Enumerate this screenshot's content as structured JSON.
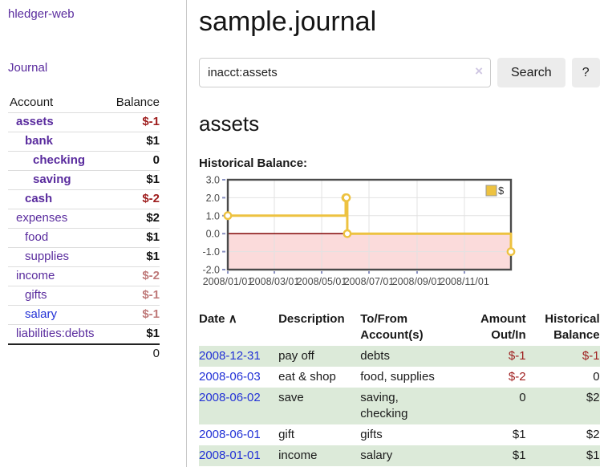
{
  "app": {
    "brand": "hledger-web"
  },
  "sidebar": {
    "nav_journal": "Journal",
    "table": {
      "col_account": "Account",
      "col_balance": "Balance",
      "accounts": [
        {
          "name": "assets",
          "balance": "$-1"
        },
        {
          "name": "bank",
          "balance": "$1"
        },
        {
          "name": "checking",
          "balance": "0"
        },
        {
          "name": "saving",
          "balance": "$1"
        },
        {
          "name": "cash",
          "balance": "$-2"
        },
        {
          "name": "expenses",
          "balance": "$2"
        },
        {
          "name": "food",
          "balance": "$1"
        },
        {
          "name": "supplies",
          "balance": "$1"
        },
        {
          "name": "income",
          "balance": "$-2"
        },
        {
          "name": "gifts",
          "balance": "$-1"
        },
        {
          "name": "salary",
          "balance": "$-1"
        },
        {
          "name": "liabilities:debts",
          "balance": "$1"
        }
      ],
      "total": "0"
    }
  },
  "header": {
    "title": "sample.journal"
  },
  "search": {
    "query": "inacct:assets",
    "clear_icon": "×",
    "search_label": "Search",
    "help_label": "?"
  },
  "account_page": {
    "heading": "assets"
  },
  "chart_data": {
    "type": "line",
    "step": true,
    "title": "Historical Balance:",
    "x_range": [
      "2008-01-01",
      "2008-12-31"
    ],
    "ylim": [
      -2,
      3
    ],
    "y_ticks": [
      "3.0",
      "2.0",
      "1.0",
      "0.0",
      "-1.0",
      "-2.0"
    ],
    "x_ticks": [
      {
        "date": "2008-01-01",
        "label": "2008/01/01"
      },
      {
        "date": "2008-03-01",
        "label": "2008/03/01"
      },
      {
        "date": "2008-05-01",
        "label": "2008/05/01"
      },
      {
        "date": "2008-07-01",
        "label": "2008/07/01"
      },
      {
        "date": "2008-09-01",
        "label": "2008/09/01"
      },
      {
        "date": "2008-11-01",
        "label": "2008/11/01"
      }
    ],
    "series": [
      {
        "name": "$",
        "color": "#edc240",
        "points": [
          {
            "x": "2008-01-01",
            "y": 1
          },
          {
            "x": "2008-06-01",
            "y": 2
          },
          {
            "x": "2008-06-02",
            "y": 2
          },
          {
            "x": "2008-06-03",
            "y": 0
          },
          {
            "x": "2008-12-31",
            "y": -1
          }
        ]
      }
    ],
    "legend": [
      {
        "label": "$",
        "color": "#edc240"
      }
    ],
    "legend_position": "top-right",
    "grid": true,
    "zero_line_color": "#8b1515",
    "negative_region_fill": "#fbdbdb"
  },
  "register": {
    "sort_icon": "∧",
    "columns": {
      "date": "Date",
      "description": "Description",
      "accounts": "To/From Account(s)",
      "amount": "Amount Out/In",
      "balance": "Historical Balance"
    },
    "rows": [
      {
        "date": "2008-12-31",
        "description": "pay off",
        "accounts": "debts",
        "amount": "$-1",
        "balance": "$-1"
      },
      {
        "date": "2008-06-03",
        "description": "eat & shop",
        "accounts": "food, supplies",
        "amount": "$-2",
        "balance": "0"
      },
      {
        "date": "2008-06-02",
        "description": "save",
        "accounts": "saving, checking",
        "amount": "0",
        "balance": "$2"
      },
      {
        "date": "2008-06-01",
        "description": "gift",
        "accounts": "gifts",
        "amount": "$1",
        "balance": "$2"
      },
      {
        "date": "2008-01-01",
        "description": "income",
        "accounts": "salary",
        "amount": "$1",
        "balance": "$1"
      }
    ]
  },
  "colors": {
    "accent_purple": "#5a2c9e",
    "link_blue": "#2231d6",
    "negative": "#9e1c1c",
    "negative_muted": "#bf7979",
    "row_green": "#dcead9",
    "series_gold": "#edc240"
  }
}
